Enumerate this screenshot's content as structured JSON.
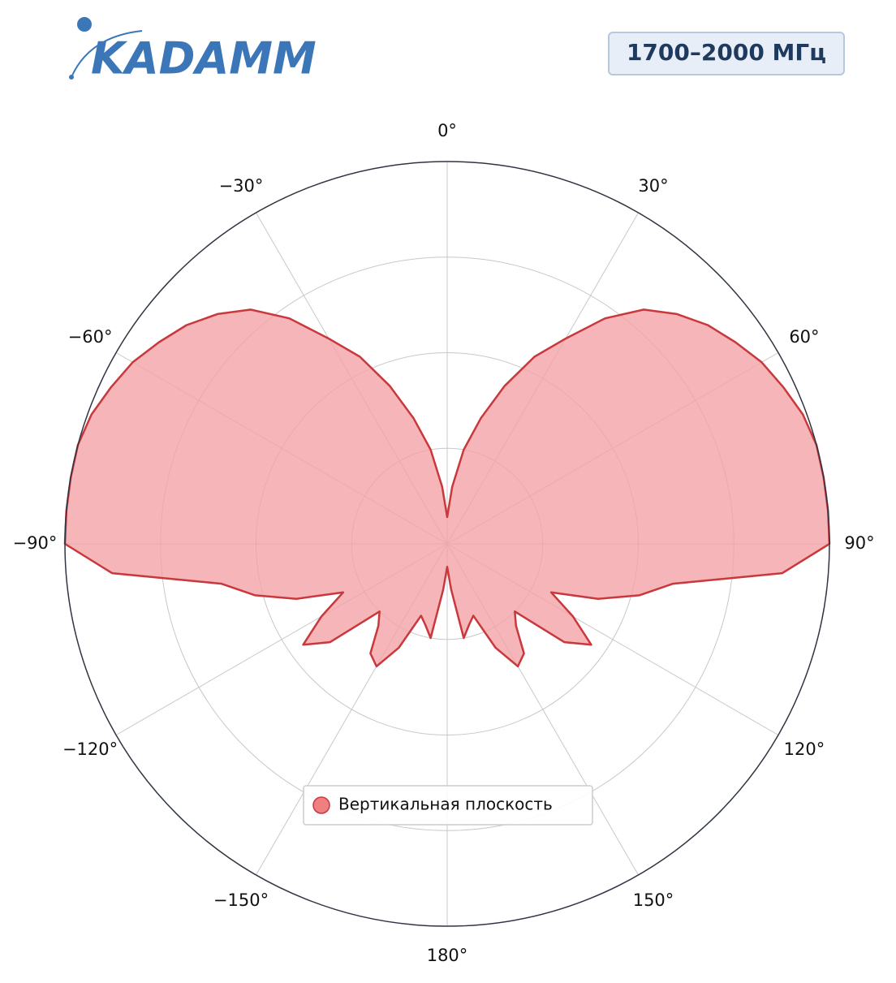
{
  "header": {
    "logo": "KADAMM",
    "badge": "1700–2000 МГц"
  },
  "chart_data": {
    "type": "polar",
    "theta": [
      -180,
      -175,
      -170,
      -165,
      -160,
      -155,
      -150,
      -145,
      -140,
      -135,
      -130,
      -125,
      -120,
      -115,
      -110,
      -105,
      -100,
      -95,
      -90,
      -85,
      -80,
      -75,
      -70,
      -65,
      -60,
      -55,
      -50,
      -45,
      -40,
      -35,
      -30,
      -25,
      -20,
      -15,
      -10,
      -5,
      0,
      5,
      10,
      15,
      20,
      25,
      30,
      35,
      40,
      45,
      50,
      55,
      60,
      65,
      70,
      75,
      80,
      85,
      90,
      95,
      100,
      105,
      110,
      115,
      120,
      125,
      130,
      135,
      140,
      145,
      150,
      155,
      160,
      165,
      170,
      175,
      180
    ],
    "series": [
      {
        "name": "Вертикальная плоскость",
        "color": "#c8383c",
        "fill": "#f4a3a6",
        "values": [
          0.06,
          0.12,
          0.25,
          0.22,
          0.2,
          0.3,
          0.37,
          0.35,
          0.28,
          0.25,
          0.4,
          0.46,
          0.38,
          0.3,
          0.42,
          0.52,
          0.6,
          0.88,
          1.0,
          1.0,
          1.0,
          1.0,
          0.99,
          0.97,
          0.95,
          0.92,
          0.89,
          0.85,
          0.8,
          0.72,
          0.62,
          0.54,
          0.44,
          0.34,
          0.25,
          0.15,
          0.07,
          0.15,
          0.25,
          0.34,
          0.44,
          0.54,
          0.62,
          0.72,
          0.8,
          0.85,
          0.89,
          0.92,
          0.95,
          0.97,
          0.99,
          1.0,
          1.0,
          1.0,
          1.0,
          0.88,
          0.6,
          0.52,
          0.42,
          0.3,
          0.38,
          0.46,
          0.4,
          0.25,
          0.28,
          0.35,
          0.37,
          0.3,
          0.2,
          0.22,
          0.25,
          0.12,
          0.06
        ]
      }
    ],
    "rlim": [
      0,
      1
    ],
    "rticks": [
      0.25,
      0.5,
      0.75,
      1
    ],
    "thetaticks": [
      {
        "value": 0,
        "label": "0°"
      },
      {
        "value": 30,
        "label": "30°"
      },
      {
        "value": 60,
        "label": "60°"
      },
      {
        "value": 90,
        "label": "90°"
      },
      {
        "value": 120,
        "label": "120°"
      },
      {
        "value": 150,
        "label": "150°"
      },
      {
        "value": 180,
        "label": "180°"
      },
      {
        "value": -150,
        "label": "−150°"
      },
      {
        "value": -120,
        "label": "−120°"
      },
      {
        "value": -90,
        "label": "−90°"
      },
      {
        "value": -60,
        "label": "−60°"
      },
      {
        "value": -30,
        "label": "−30°"
      }
    ],
    "grid": true,
    "legend": "bottom"
  }
}
